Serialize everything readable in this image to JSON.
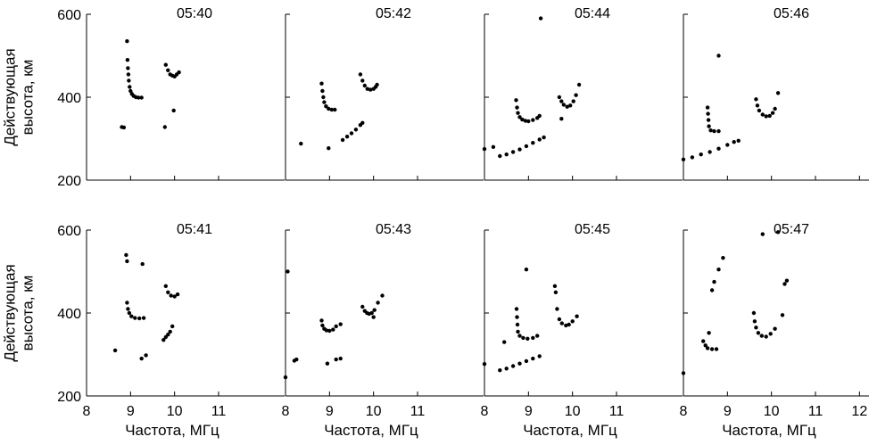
{
  "chart_data": {
    "type": "scatter",
    "layout": "2 rows x 4 columns of small-multiple panels, shared axes",
    "xlabel": "Частота, МГц",
    "ylabel_lines": [
      "Действующая",
      "высота, км"
    ],
    "xlim": [
      8,
      12
    ],
    "ylim": [
      200,
      600
    ],
    "x_ticks_bottom": [
      [
        "8",
        "9",
        "10",
        "11"
      ],
      [
        "8",
        "9",
        "10",
        "11"
      ],
      [
        "8",
        "9",
        "10",
        "11"
      ],
      [
        "8",
        "9",
        "10",
        "11",
        "12"
      ]
    ],
    "y_ticks": [
      "200",
      "400",
      "600"
    ],
    "grid": false,
    "legend": "none",
    "marker_color": "#000000",
    "panels": [
      {
        "title": "05:40",
        "points": [
          [
            8.92,
            535
          ],
          [
            8.93,
            490
          ],
          [
            8.94,
            470
          ],
          [
            8.95,
            455
          ],
          [
            8.96,
            440
          ],
          [
            8.98,
            425
          ],
          [
            9.0,
            415
          ],
          [
            9.03,
            408
          ],
          [
            9.07,
            403
          ],
          [
            9.12,
            400
          ],
          [
            9.18,
            399
          ],
          [
            9.25,
            399
          ],
          [
            9.8,
            478
          ],
          [
            9.85,
            465
          ],
          [
            9.9,
            455
          ],
          [
            9.95,
            452
          ],
          [
            10.0,
            450
          ],
          [
            10.05,
            455
          ],
          [
            10.1,
            460
          ],
          [
            9.98,
            368
          ],
          [
            9.78,
            328
          ],
          [
            8.8,
            328
          ],
          [
            8.85,
            327
          ]
        ]
      },
      {
        "title": "05:42",
        "points": [
          [
            8.82,
            433
          ],
          [
            8.84,
            415
          ],
          [
            8.86,
            400
          ],
          [
            8.88,
            388
          ],
          [
            8.92,
            378
          ],
          [
            8.98,
            372
          ],
          [
            9.05,
            370
          ],
          [
            9.12,
            370
          ],
          [
            9.7,
            455
          ],
          [
            9.75,
            440
          ],
          [
            9.8,
            428
          ],
          [
            9.86,
            420
          ],
          [
            9.93,
            418
          ],
          [
            10.0,
            420
          ],
          [
            10.05,
            425
          ],
          [
            10.08,
            430
          ],
          [
            8.35,
            288
          ],
          [
            8.98,
            277
          ],
          [
            9.3,
            297
          ],
          [
            9.4,
            305
          ],
          [
            9.5,
            313
          ],
          [
            9.6,
            322
          ],
          [
            9.7,
            333
          ],
          [
            9.75,
            338
          ]
        ]
      },
      {
        "title": "05:44",
        "points": [
          [
            8.72,
            393
          ],
          [
            8.74,
            375
          ],
          [
            8.76,
            362
          ],
          [
            8.8,
            352
          ],
          [
            8.86,
            346
          ],
          [
            8.93,
            343
          ],
          [
            9.0,
            342
          ],
          [
            9.1,
            345
          ],
          [
            9.2,
            350
          ],
          [
            9.25,
            355
          ],
          [
            9.7,
            400
          ],
          [
            9.75,
            390
          ],
          [
            9.8,
            382
          ],
          [
            9.88,
            377
          ],
          [
            9.95,
            380
          ],
          [
            10.02,
            390
          ],
          [
            10.08,
            405
          ],
          [
            10.15,
            430
          ],
          [
            9.75,
            348
          ],
          [
            9.28,
            590
          ],
          [
            8.0,
            275
          ],
          [
            8.2,
            280
          ],
          [
            8.35,
            258
          ],
          [
            8.5,
            262
          ],
          [
            8.65,
            268
          ],
          [
            8.8,
            274
          ],
          [
            8.95,
            282
          ],
          [
            9.1,
            290
          ],
          [
            9.25,
            298
          ],
          [
            9.35,
            303
          ]
        ]
      },
      {
        "title": "05:46",
        "points": [
          [
            8.55,
            375
          ],
          [
            8.56,
            360
          ],
          [
            8.57,
            345
          ],
          [
            8.58,
            330
          ],
          [
            8.62,
            320
          ],
          [
            8.7,
            318
          ],
          [
            8.8,
            318
          ],
          [
            9.65,
            395
          ],
          [
            9.68,
            380
          ],
          [
            9.72,
            368
          ],
          [
            9.8,
            358
          ],
          [
            9.88,
            354
          ],
          [
            9.96,
            355
          ],
          [
            10.03,
            362
          ],
          [
            10.08,
            372
          ],
          [
            10.15,
            410
          ],
          [
            8.8,
            500
          ],
          [
            8.0,
            250
          ],
          [
            8.2,
            255
          ],
          [
            8.4,
            262
          ],
          [
            8.6,
            268
          ],
          [
            8.8,
            276
          ],
          [
            9.0,
            285
          ],
          [
            9.15,
            292
          ],
          [
            9.25,
            295
          ]
        ]
      },
      {
        "title": "05:41",
        "points": [
          [
            8.9,
            540
          ],
          [
            8.92,
            525
          ],
          [
            9.27,
            518
          ],
          [
            8.92,
            425
          ],
          [
            8.94,
            410
          ],
          [
            8.97,
            400
          ],
          [
            9.02,
            392
          ],
          [
            9.1,
            388
          ],
          [
            9.2,
            387
          ],
          [
            9.3,
            388
          ],
          [
            9.8,
            465
          ],
          [
            9.85,
            450
          ],
          [
            9.92,
            442
          ],
          [
            10.0,
            440
          ],
          [
            10.07,
            445
          ],
          [
            8.65,
            310
          ],
          [
            9.25,
            290
          ],
          [
            9.35,
            298
          ],
          [
            9.75,
            335
          ],
          [
            9.8,
            342
          ],
          [
            9.85,
            348
          ],
          [
            9.9,
            355
          ],
          [
            9.95,
            368
          ]
        ]
      },
      {
        "title": "05:43",
        "points": [
          [
            8.05,
            500
          ],
          [
            8.82,
            382
          ],
          [
            8.84,
            370
          ],
          [
            8.88,
            362
          ],
          [
            8.93,
            358
          ],
          [
            9.0,
            357
          ],
          [
            9.08,
            360
          ],
          [
            9.15,
            368
          ],
          [
            9.25,
            373
          ],
          [
            9.75,
            415
          ],
          [
            9.8,
            405
          ],
          [
            9.85,
            400
          ],
          [
            9.9,
            398
          ],
          [
            9.96,
            400
          ],
          [
            10.02,
            407
          ],
          [
            10.1,
            425
          ],
          [
            10.2,
            442
          ],
          [
            10.0,
            390
          ],
          [
            8.0,
            245
          ],
          [
            8.2,
            285
          ],
          [
            8.25,
            288
          ],
          [
            8.95,
            278
          ],
          [
            9.15,
            288
          ],
          [
            9.25,
            290
          ]
        ]
      },
      {
        "title": "05:45",
        "points": [
          [
            8.73,
            410
          ],
          [
            8.74,
            390
          ],
          [
            8.75,
            372
          ],
          [
            8.76,
            355
          ],
          [
            8.8,
            345
          ],
          [
            8.88,
            340
          ],
          [
            8.98,
            338
          ],
          [
            9.1,
            340
          ],
          [
            9.2,
            345
          ],
          [
            9.6,
            465
          ],
          [
            9.62,
            450
          ],
          [
            9.65,
            410
          ],
          [
            9.7,
            385
          ],
          [
            9.76,
            375
          ],
          [
            9.85,
            370
          ],
          [
            9.92,
            372
          ],
          [
            10.0,
            380
          ],
          [
            10.1,
            392
          ],
          [
            8.95,
            505
          ],
          [
            8.0,
            277
          ],
          [
            8.35,
            262
          ],
          [
            8.5,
            266
          ],
          [
            8.65,
            272
          ],
          [
            8.8,
            278
          ],
          [
            8.95,
            284
          ],
          [
            9.1,
            290
          ],
          [
            9.25,
            296
          ],
          [
            8.45,
            330
          ]
        ]
      },
      {
        "title": "05:47",
        "points": [
          [
            8.45,
            332
          ],
          [
            8.5,
            322
          ],
          [
            8.55,
            315
          ],
          [
            8.65,
            313
          ],
          [
            8.75,
            313
          ],
          [
            8.58,
            352
          ],
          [
            9.6,
            400
          ],
          [
            9.62,
            380
          ],
          [
            9.65,
            365
          ],
          [
            9.7,
            352
          ],
          [
            9.78,
            345
          ],
          [
            9.88,
            343
          ],
          [
            9.98,
            350
          ],
          [
            10.08,
            362
          ],
          [
            10.25,
            395
          ],
          [
            10.3,
            470
          ],
          [
            10.35,
            478
          ],
          [
            8.65,
            455
          ],
          [
            8.7,
            475
          ],
          [
            8.8,
            505
          ],
          [
            8.9,
            533
          ],
          [
            9.8,
            590
          ],
          [
            10.15,
            595
          ],
          [
            8.0,
            255
          ]
        ]
      }
    ]
  }
}
